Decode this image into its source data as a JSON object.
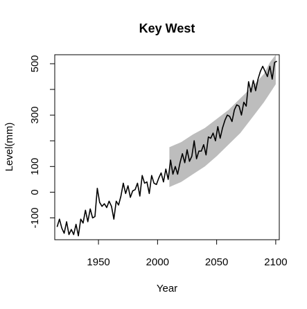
{
  "chart_data": {
    "type": "line",
    "title": "Key West",
    "xlabel": "Year",
    "ylabel": "Level(mm)",
    "xlim": [
      1913,
      2103
    ],
    "ylim": [
      -185,
      535
    ],
    "x_ticks": [
      1950,
      2000,
      2050,
      2100
    ],
    "y_ticks": [
      -100,
      0,
      100,
      200,
      300,
      400,
      500
    ],
    "y_tick_labels": [
      "-100",
      "0",
      "100",
      "",
      "300",
      "",
      "500"
    ],
    "grid": false,
    "legend": "none",
    "colors": {
      "line": "#000000",
      "band": "#bdbdbd"
    },
    "series": [
      {
        "style": "line",
        "x": [
          1915,
          1917,
          1919,
          1921,
          1923,
          1925,
          1927,
          1929,
          1931,
          1933,
          1935,
          1937,
          1939,
          1941,
          1943,
          1945,
          1947,
          1949,
          1951,
          1953,
          1955,
          1957,
          1959,
          1961,
          1963,
          1965,
          1967,
          1969,
          1971,
          1973,
          1975,
          1977,
          1979,
          1981,
          1983,
          1985,
          1987,
          1989,
          1991,
          1993,
          1995,
          1997,
          1999,
          2001,
          2003,
          2005,
          2007,
          2009,
          2011,
          2013,
          2015,
          2017,
          2019,
          2021,
          2023,
          2025,
          2027,
          2029,
          2031,
          2033,
          2035,
          2037,
          2039,
          2041,
          2043,
          2045,
          2047,
          2049,
          2051,
          2053,
          2055,
          2057,
          2059,
          2061,
          2063,
          2065,
          2067,
          2069,
          2071,
          2073,
          2075,
          2077,
          2079,
          2081,
          2083,
          2085,
          2087,
          2089,
          2091,
          2093,
          2095,
          2097,
          2099,
          2101
        ],
        "values": [
          -135,
          -105,
          -140,
          -160,
          -115,
          -165,
          -145,
          -165,
          -125,
          -170,
          -105,
          -120,
          -70,
          -115,
          -65,
          -100,
          -95,
          15,
          -40,
          -55,
          -45,
          -60,
          -35,
          -55,
          -105,
          -35,
          -50,
          -15,
          35,
          -5,
          25,
          -20,
          5,
          10,
          35,
          -15,
          65,
          35,
          40,
          -5,
          65,
          35,
          30,
          55,
          75,
          40,
          90,
          50,
          125,
          70,
          100,
          70,
          115,
          150,
          115,
          165,
          120,
          140,
          200,
          130,
          160,
          160,
          185,
          145,
          215,
          210,
          230,
          200,
          255,
          210,
          250,
          280,
          300,
          295,
          275,
          320,
          340,
          335,
          300,
          350,
          335,
          430,
          390,
          435,
          395,
          440,
          470,
          490,
          470,
          450,
          490,
          440,
          505,
          510
        ]
      },
      {
        "style": "band",
        "x": [
          2010,
          2020,
          2030,
          2040,
          2050,
          2060,
          2070,
          2080,
          2090,
          2095,
          2100
        ],
        "lower": [
          20,
          40,
          70,
          100,
          140,
          185,
          230,
          290,
          350,
          385,
          420
        ],
        "upper": [
          175,
          195,
          225,
          250,
          285,
          320,
          365,
          410,
          460,
          505,
          535
        ]
      }
    ]
  }
}
